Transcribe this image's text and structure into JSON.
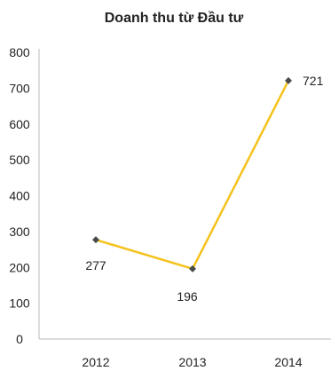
{
  "chart_data": {
    "type": "line",
    "title": "Doanh thu từ Đầu tư",
    "xlabel": "",
    "ylabel": "",
    "categories": [
      "2012",
      "2013",
      "2014"
    ],
    "series": [
      {
        "values": [
          277,
          196,
          721
        ],
        "data_labels": [
          "277",
          "196",
          "721"
        ]
      }
    ],
    "ylim": [
      0,
      800
    ],
    "yticks": [
      "0",
      "100",
      "200",
      "300",
      "400",
      "500",
      "600",
      "700",
      "800"
    ],
    "grid": false,
    "legend": "none",
    "colors": {
      "line": "#F5C21B",
      "marker": "#4A4A4A",
      "axis": "#BBBBBB",
      "text": "#222222"
    }
  }
}
